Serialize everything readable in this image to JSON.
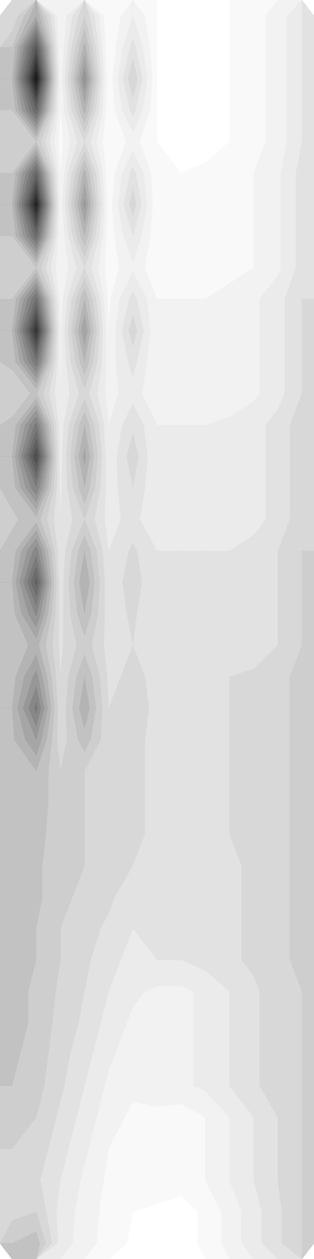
{
  "chart_data": {
    "type": "contour",
    "color": "greys",
    "tick_labels": false,
    "zlim": [
      0,
      1
    ],
    "levels": [
      0.05,
      0.1,
      0.15,
      0.2,
      0.25,
      0.3,
      0.35,
      0.4,
      0.45,
      0.5,
      0.55,
      0.6,
      0.65,
      0.7,
      0.75,
      0.8,
      0.85,
      0.9,
      0.95
    ],
    "z": [
      [
        0.25,
        0.45,
        0.1,
        0.3,
        0.05,
        0.15,
        0.05,
        0.03,
        0.03,
        0.05,
        0.08,
        0.12,
        0.2
      ],
      [
        0.35,
        0.75,
        0.1,
        0.42,
        0.05,
        0.22,
        0.05,
        0.03,
        0.03,
        0.05,
        0.08,
        0.12,
        0.2
      ],
      [
        0.4,
        0.95,
        0.12,
        0.55,
        0.06,
        0.3,
        0.05,
        0.03,
        0.03,
        0.05,
        0.08,
        0.12,
        0.2
      ],
      [
        0.35,
        0.7,
        0.1,
        0.42,
        0.06,
        0.22,
        0.05,
        0.03,
        0.03,
        0.05,
        0.08,
        0.12,
        0.2
      ],
      [
        0.3,
        0.35,
        0.08,
        0.25,
        0.05,
        0.12,
        0.05,
        0.03,
        0.03,
        0.05,
        0.08,
        0.12,
        0.2
      ],
      [
        0.35,
        0.7,
        0.1,
        0.42,
        0.06,
        0.22,
        0.06,
        0.05,
        0.06,
        0.08,
        0.1,
        0.14,
        0.22
      ],
      [
        0.4,
        0.92,
        0.12,
        0.52,
        0.07,
        0.28,
        0.06,
        0.05,
        0.06,
        0.08,
        0.1,
        0.14,
        0.22
      ],
      [
        0.35,
        0.68,
        0.1,
        0.4,
        0.07,
        0.2,
        0.06,
        0.05,
        0.06,
        0.08,
        0.1,
        0.14,
        0.22
      ],
      [
        0.3,
        0.35,
        0.1,
        0.25,
        0.07,
        0.14,
        0.06,
        0.05,
        0.06,
        0.08,
        0.1,
        0.14,
        0.22
      ],
      [
        0.35,
        0.66,
        0.12,
        0.4,
        0.09,
        0.22,
        0.1,
        0.1,
        0.1,
        0.12,
        0.14,
        0.18,
        0.25
      ],
      [
        0.4,
        0.87,
        0.14,
        0.5,
        0.1,
        0.28,
        0.1,
        0.1,
        0.1,
        0.12,
        0.14,
        0.18,
        0.25
      ],
      [
        0.36,
        0.64,
        0.14,
        0.4,
        0.12,
        0.22,
        0.1,
        0.1,
        0.1,
        0.12,
        0.14,
        0.18,
        0.25
      ],
      [
        0.32,
        0.36,
        0.15,
        0.28,
        0.13,
        0.18,
        0.1,
        0.1,
        0.1,
        0.12,
        0.14,
        0.18,
        0.25
      ],
      [
        0.36,
        0.62,
        0.17,
        0.4,
        0.15,
        0.24,
        0.15,
        0.15,
        0.15,
        0.16,
        0.18,
        0.22,
        0.28
      ],
      [
        0.4,
        0.8,
        0.18,
        0.47,
        0.16,
        0.28,
        0.15,
        0.15,
        0.15,
        0.16,
        0.18,
        0.22,
        0.28
      ],
      [
        0.37,
        0.6,
        0.19,
        0.4,
        0.17,
        0.25,
        0.15,
        0.15,
        0.15,
        0.16,
        0.18,
        0.22,
        0.28
      ],
      [
        0.34,
        0.38,
        0.2,
        0.3,
        0.18,
        0.22,
        0.15,
        0.15,
        0.15,
        0.16,
        0.18,
        0.22,
        0.28
      ],
      [
        0.37,
        0.58,
        0.21,
        0.4,
        0.2,
        0.26,
        0.2,
        0.2,
        0.2,
        0.2,
        0.22,
        0.25,
        0.3
      ],
      [
        0.4,
        0.72,
        0.22,
        0.45,
        0.21,
        0.28,
        0.2,
        0.2,
        0.2,
        0.2,
        0.22,
        0.25,
        0.3
      ],
      [
        0.38,
        0.56,
        0.23,
        0.4,
        0.22,
        0.26,
        0.2,
        0.2,
        0.2,
        0.2,
        0.22,
        0.25,
        0.3
      ],
      [
        0.36,
        0.42,
        0.24,
        0.33,
        0.23,
        0.25,
        0.2,
        0.2,
        0.2,
        0.2,
        0.22,
        0.25,
        0.3
      ],
      [
        0.38,
        0.52,
        0.25,
        0.4,
        0.24,
        0.26,
        0.24,
        0.24,
        0.24,
        0.25,
        0.26,
        0.28,
        0.32
      ],
      [
        0.4,
        0.62,
        0.26,
        0.44,
        0.25,
        0.27,
        0.24,
        0.24,
        0.24,
        0.25,
        0.26,
        0.28,
        0.32
      ],
      [
        0.39,
        0.5,
        0.27,
        0.38,
        0.26,
        0.26,
        0.24,
        0.24,
        0.24,
        0.25,
        0.26,
        0.28,
        0.32
      ],
      [
        0.38,
        0.4,
        0.3,
        0.3,
        0.27,
        0.26,
        0.24,
        0.24,
        0.24,
        0.25,
        0.26,
        0.28,
        0.32
      ],
      [
        0.38,
        0.38,
        0.32,
        0.3,
        0.28,
        0.26,
        0.24,
        0.24,
        0.24,
        0.25,
        0.26,
        0.28,
        0.32
      ],
      [
        0.38,
        0.37,
        0.32,
        0.3,
        0.28,
        0.26,
        0.24,
        0.24,
        0.24,
        0.25,
        0.26,
        0.28,
        0.32
      ],
      [
        0.38,
        0.36,
        0.32,
        0.3,
        0.28,
        0.25,
        0.2,
        0.2,
        0.22,
        0.24,
        0.26,
        0.28,
        0.32
      ],
      [
        0.38,
        0.36,
        0.32,
        0.28,
        0.26,
        0.22,
        0.2,
        0.2,
        0.22,
        0.24,
        0.26,
        0.28,
        0.32
      ],
      [
        0.38,
        0.35,
        0.3,
        0.27,
        0.24,
        0.2,
        0.2,
        0.2,
        0.22,
        0.24,
        0.26,
        0.28,
        0.32
      ],
      [
        0.38,
        0.35,
        0.3,
        0.26,
        0.22,
        0.18,
        0.2,
        0.2,
        0.22,
        0.24,
        0.26,
        0.28,
        0.32
      ],
      [
        0.37,
        0.34,
        0.29,
        0.25,
        0.2,
        0.16,
        0.14,
        0.14,
        0.16,
        0.2,
        0.24,
        0.28,
        0.3
      ],
      [
        0.37,
        0.34,
        0.28,
        0.24,
        0.18,
        0.14,
        0.14,
        0.14,
        0.16,
        0.2,
        0.24,
        0.28,
        0.3
      ],
      [
        0.36,
        0.33,
        0.27,
        0.22,
        0.16,
        0.12,
        0.14,
        0.14,
        0.16,
        0.2,
        0.24,
        0.28,
        0.3
      ],
      [
        0.35,
        0.32,
        0.26,
        0.2,
        0.14,
        0.11,
        0.14,
        0.14,
        0.16,
        0.2,
        0.24,
        0.28,
        0.3
      ],
      [
        0.34,
        0.3,
        0.24,
        0.18,
        0.12,
        0.09,
        0.08,
        0.07,
        0.1,
        0.15,
        0.2,
        0.25,
        0.3
      ],
      [
        0.3,
        0.28,
        0.22,
        0.16,
        0.1,
        0.07,
        0.08,
        0.07,
        0.1,
        0.15,
        0.2,
        0.25,
        0.3
      ],
      [
        0.26,
        0.26,
        0.2,
        0.14,
        0.09,
        0.06,
        0.08,
        0.07,
        0.1,
        0.15,
        0.2,
        0.25,
        0.3
      ],
      [
        0.28,
        0.3,
        0.18,
        0.13,
        0.08,
        0.05,
        0.04,
        0.03,
        0.06,
        0.12,
        0.18,
        0.24,
        0.3
      ],
      [
        0.35,
        0.38,
        0.18,
        0.12,
        0.08,
        0.04,
        0.04,
        0.03,
        0.06,
        0.12,
        0.18,
        0.24,
        0.3
      ]
    ]
  }
}
